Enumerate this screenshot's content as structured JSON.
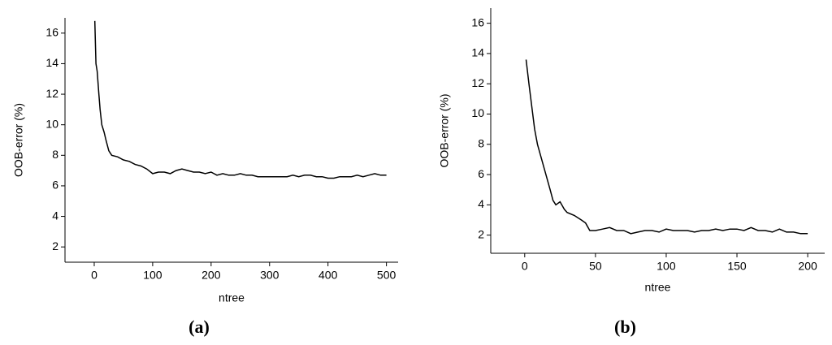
{
  "chart_data": [
    {
      "type": "line",
      "x_label": "ntree",
      "y_label": "OOB-error (%)",
      "caption": "(a)",
      "color": "#000000",
      "xlim": [
        -50,
        520
      ],
      "ylim": [
        1,
        17
      ],
      "xticks": [
        0,
        100,
        200,
        300,
        400,
        500
      ],
      "yticks": [
        2,
        4,
        6,
        8,
        10,
        12,
        14,
        16
      ],
      "x": [
        1,
        3,
        5,
        8,
        10,
        13,
        17,
        20,
        25,
        30,
        40,
        50,
        60,
        70,
        80,
        90,
        100,
        110,
        120,
        130,
        140,
        150,
        160,
        170,
        180,
        190,
        200,
        210,
        220,
        230,
        240,
        250,
        260,
        270,
        280,
        290,
        300,
        310,
        320,
        330,
        340,
        350,
        360,
        370,
        380,
        390,
        400,
        410,
        420,
        430,
        440,
        450,
        460,
        470,
        480,
        490,
        500
      ],
      "values": [
        16.8,
        14,
        13.5,
        12,
        11,
        10,
        9.5,
        9,
        8.3,
        8,
        7.9,
        7.7,
        7.6,
        7.4,
        7.3,
        7.1,
        6.8,
        6.9,
        6.9,
        6.8,
        7.0,
        7.1,
        7.0,
        6.9,
        6.9,
        6.8,
        6.9,
        6.7,
        6.8,
        6.7,
        6.7,
        6.8,
        6.7,
        6.7,
        6.6,
        6.6,
        6.6,
        6.6,
        6.6,
        6.6,
        6.7,
        6.6,
        6.7,
        6.7,
        6.6,
        6.6,
        6.5,
        6.5,
        6.6,
        6.6,
        6.6,
        6.7,
        6.6,
        6.7,
        6.8,
        6.7,
        6.7
      ]
    },
    {
      "type": "line",
      "x_label": "ntree",
      "y_label": "OOB-error (%)",
      "caption": "(b)",
      "color": "#000000",
      "xlim": [
        -24,
        212
      ],
      "ylim": [
        0.8,
        17
      ],
      "xticks": [
        0,
        50,
        100,
        150,
        200
      ],
      "yticks": [
        2,
        4,
        6,
        8,
        10,
        12,
        14,
        16
      ],
      "x": [
        1,
        3,
        5,
        7,
        9,
        12,
        15,
        18,
        20,
        22,
        25,
        28,
        30,
        35,
        40,
        43,
        46,
        50,
        55,
        60,
        65,
        70,
        75,
        80,
        85,
        90,
        95,
        100,
        105,
        110,
        115,
        120,
        125,
        130,
        135,
        140,
        145,
        150,
        155,
        160,
        165,
        170,
        175,
        180,
        185,
        190,
        195,
        200
      ],
      "values": [
        13.6,
        12,
        10.5,
        9,
        8,
        7,
        6,
        5,
        4.3,
        4.0,
        4.2,
        3.7,
        3.5,
        3.3,
        3.0,
        2.8,
        2.3,
        2.3,
        2.4,
        2.5,
        2.3,
        2.3,
        2.1,
        2.2,
        2.3,
        2.3,
        2.2,
        2.4,
        2.3,
        2.3,
        2.3,
        2.2,
        2.3,
        2.3,
        2.4,
        2.3,
        2.4,
        2.4,
        2.3,
        2.5,
        2.3,
        2.3,
        2.2,
        2.4,
        2.2,
        2.2,
        2.1,
        2.1
      ]
    }
  ]
}
